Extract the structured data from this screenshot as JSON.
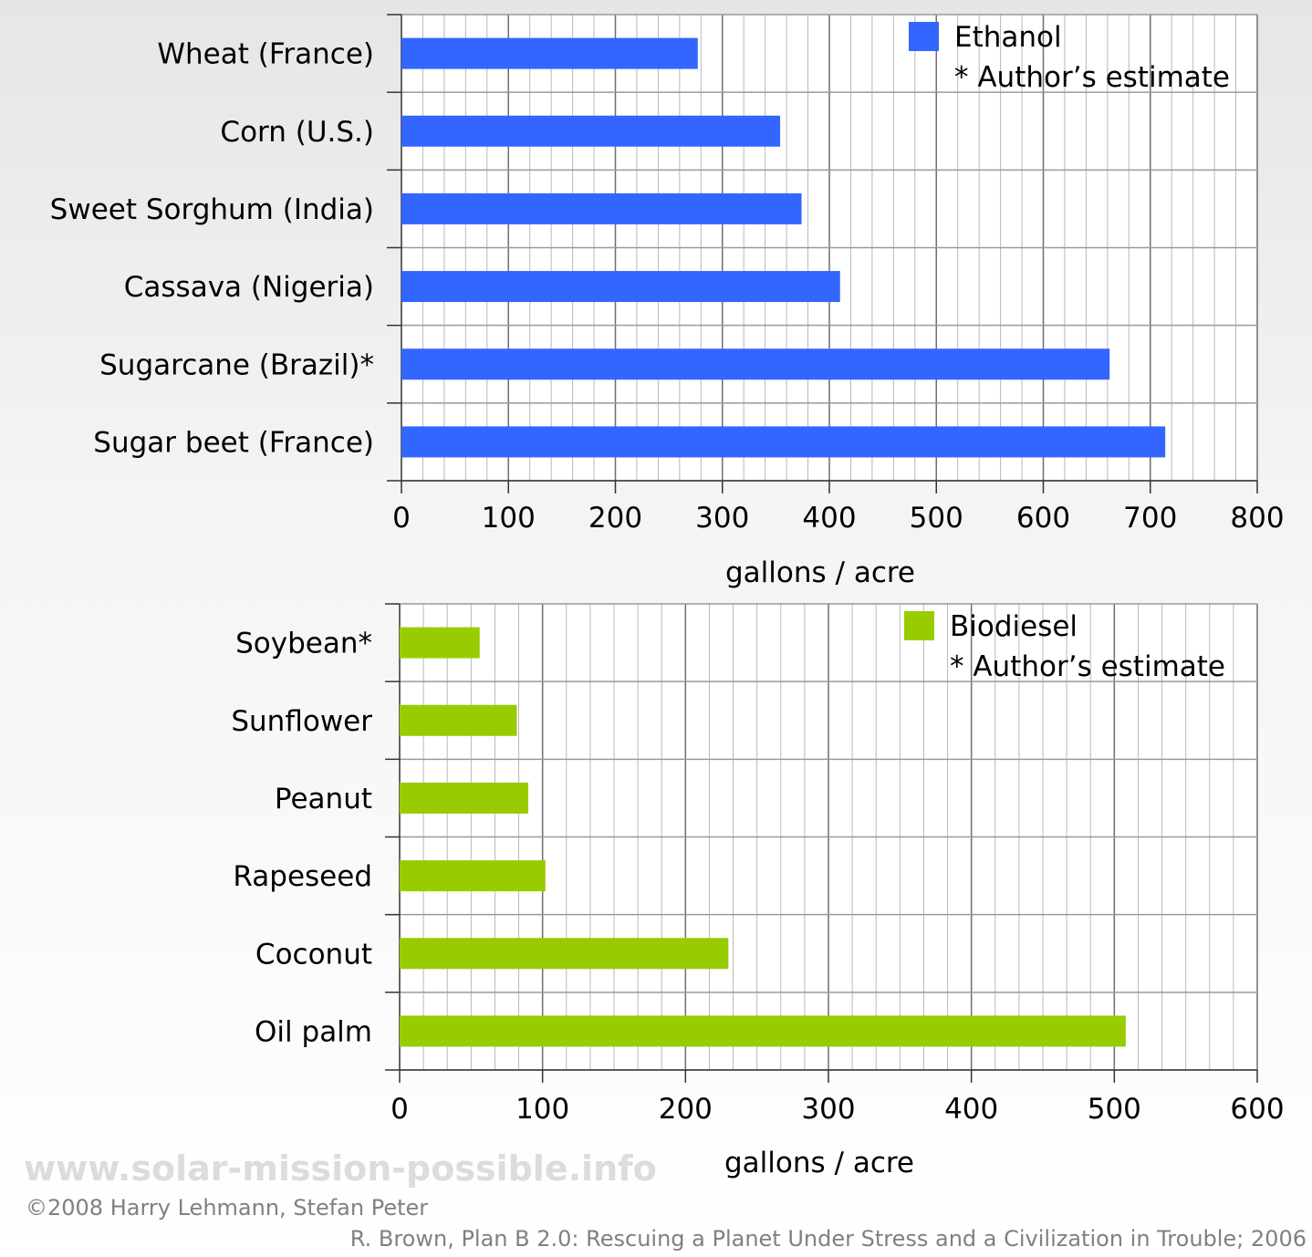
{
  "chart_data": [
    {
      "type": "bar",
      "orientation": "horizontal",
      "categories": [
        "Wheat (France)",
        "Corn (U.S.)",
        "Sweet Sorghum (India)",
        "Cassava (Nigeria)",
        "Sugarcane (Brazil)*",
        "Sugar beet (France)"
      ],
      "series": [
        {
          "name": "Ethanol",
          "values": [
            277,
            354,
            374,
            410,
            662,
            714
          ],
          "color": "#3366ff"
        }
      ],
      "xlabel": "gallons / acre",
      "xlim": [
        0,
        800
      ],
      "xticks": [
        "0",
        "100",
        "200",
        "300",
        "400",
        "500",
        "600",
        "700",
        "800"
      ],
      "grid": true,
      "legend": {
        "label": "Ethanol",
        "note": "* Author’s estimate",
        "placement": "top-right"
      }
    },
    {
      "type": "bar",
      "orientation": "horizontal",
      "categories": [
        "Soybean*",
        "Sunflower",
        "Peanut",
        "Rapeseed",
        "Coconut",
        "Oil palm"
      ],
      "series": [
        {
          "name": "Biodiesel",
          "values": [
            56,
            82,
            90,
            102,
            230,
            508
          ],
          "color": "#99cc00"
        }
      ],
      "xlabel": "gallons / acre",
      "xlim": [
        0,
        600
      ],
      "xticks": [
        "0",
        "100",
        "200",
        "300",
        "400",
        "500",
        "600"
      ],
      "grid": true,
      "legend": {
        "label": "Biodiesel",
        "note": "* Author’s estimate",
        "placement": "top-right"
      }
    }
  ],
  "footer": {
    "watermark": "www.solar-mission-possible.info",
    "copyright": "©2008 Harry Lehmann, Stefan Peter",
    "source": "R. Brown, Plan B 2.0: Rescuing a Planet Under Stress and a Civilization in Trouble; 2006"
  }
}
